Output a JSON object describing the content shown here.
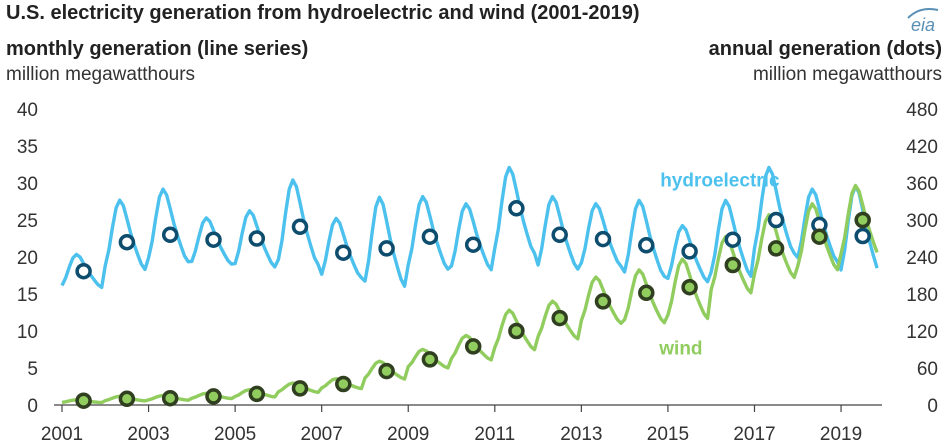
{
  "title": "U.S. electricity generation from hydroelectric and wind (2001-2019)",
  "left_axis": {
    "title": "monthly generation (line series)",
    "units": "million megawatthours"
  },
  "right_axis": {
    "title": "annual generation (dots)",
    "units": "million megawatthours"
  },
  "logo_text": "eia",
  "colors": {
    "hydro": "#4cc1ee",
    "hydro_dot_fill": "#ffffff",
    "hydro_dot_stroke": "#0e4d6e",
    "wind": "#91cc5f",
    "wind_dot_stroke": "#2f3f1f"
  },
  "chart_data": {
    "type": "line",
    "x_range": [
      2001,
      2019.9
    ],
    "xticks": [
      "2001",
      "2003",
      "2005",
      "2007",
      "2009",
      "2011",
      "2013",
      "2015",
      "2017",
      "2019"
    ],
    "ylim_left": [
      0,
      40
    ],
    "yticks_left": [
      "0",
      "5",
      "10",
      "15",
      "20",
      "25",
      "30",
      "35",
      "40"
    ],
    "ylim_right": [
      0,
      480
    ],
    "yticks_right": [
      "0",
      "60",
      "120",
      "180",
      "240",
      "300",
      "360",
      "420",
      "480"
    ],
    "grid": false,
    "monthly_series": [
      {
        "name": "hydroelectric",
        "color": "#4cc1ee",
        "yearly_profile": [
          [
            2001,
            19.5,
            20.5,
            15.5
          ],
          [
            2002,
            21.5,
            28.0,
            17.5
          ],
          [
            2003,
            22.0,
            29.5,
            18.5
          ],
          [
            2004,
            21.5,
            25.5,
            18.5
          ],
          [
            2005,
            21.5,
            26.5,
            18.0
          ],
          [
            2006,
            23.5,
            30.8,
            18.0
          ],
          [
            2007,
            21.0,
            25.5,
            16.5
          ],
          [
            2008,
            21.0,
            28.5,
            15.0
          ],
          [
            2009,
            22.0,
            28.5,
            17.5
          ],
          [
            2010,
            21.5,
            27.5,
            17.5
          ],
          [
            2011,
            24.5,
            32.5,
            19.5
          ],
          [
            2012,
            24.5,
            28.5,
            17.5
          ],
          [
            2013,
            22.0,
            27.5,
            18.0
          ],
          [
            2014,
            21.0,
            28.0,
            16.5
          ],
          [
            2015,
            21.0,
            24.5,
            16.0
          ],
          [
            2016,
            22.5,
            28.0,
            16.5
          ],
          [
            2017,
            25.0,
            32.5,
            19.5
          ],
          [
            2018,
            25.0,
            29.5,
            18.5
          ],
          [
            2019,
            24.0,
            30.0,
            16.5
          ]
        ]
      },
      {
        "name": "wind",
        "color": "#91cc5f",
        "yearly_profile": [
          [
            2001,
            0.4,
            0.7,
            0.3
          ],
          [
            2002,
            0.8,
            1.2,
            0.5
          ],
          [
            2003,
            0.9,
            1.3,
            0.6
          ],
          [
            2004,
            1.2,
            1.6,
            0.8
          ],
          [
            2005,
            1.5,
            2.1,
            1.0
          ],
          [
            2006,
            2.2,
            3.0,
            1.6
          ],
          [
            2007,
            2.9,
            3.6,
            2.1
          ],
          [
            2008,
            4.6,
            6.0,
            3.3
          ],
          [
            2009,
            6.2,
            7.6,
            4.8
          ],
          [
            2010,
            7.8,
            9.5,
            5.8
          ],
          [
            2011,
            10.0,
            13.0,
            7.0
          ],
          [
            2012,
            11.5,
            14.2,
            8.5
          ],
          [
            2013,
            14.0,
            17.5,
            10.5
          ],
          [
            2014,
            15.0,
            18.5,
            10.5
          ],
          [
            2015,
            16.0,
            20.0,
            11.0
          ],
          [
            2016,
            19.0,
            23.0,
            14.5
          ],
          [
            2017,
            21.5,
            26.0,
            16.5
          ],
          [
            2018,
            23.0,
            27.5,
            17.5
          ],
          [
            2019,
            25.0,
            30.0,
            19.0
          ]
        ]
      }
    ],
    "annual_series": [
      {
        "name": "hydroelectric",
        "x": [
          2001,
          2002,
          2003,
          2004,
          2005,
          2006,
          2007,
          2008,
          2009,
          2010,
          2011,
          2012,
          2013,
          2014,
          2015,
          2016,
          2017,
          2018,
          2019
        ],
        "values": [
          217,
          264,
          276,
          268,
          270,
          289,
          247,
          254,
          273,
          260,
          319,
          276,
          269,
          259,
          249,
          268,
          300,
          292,
          274
        ]
      },
      {
        "name": "wind",
        "x": [
          2001,
          2002,
          2003,
          2004,
          2005,
          2006,
          2007,
          2008,
          2009,
          2010,
          2011,
          2012,
          2013,
          2014,
          2015,
          2016,
          2017,
          2018,
          2019
        ],
        "values": [
          7,
          10,
          11,
          14,
          18,
          27,
          34,
          55,
          74,
          95,
          120,
          141,
          168,
          182,
          191,
          227,
          254,
          273,
          300
        ]
      }
    ],
    "annotations": [
      {
        "text": "hydroelectric",
        "series": "hydro",
        "x": 2016.2,
        "y": 29.5
      },
      {
        "text": "wind",
        "series": "wind",
        "x": 2015.3,
        "y": 6.8
      }
    ]
  }
}
